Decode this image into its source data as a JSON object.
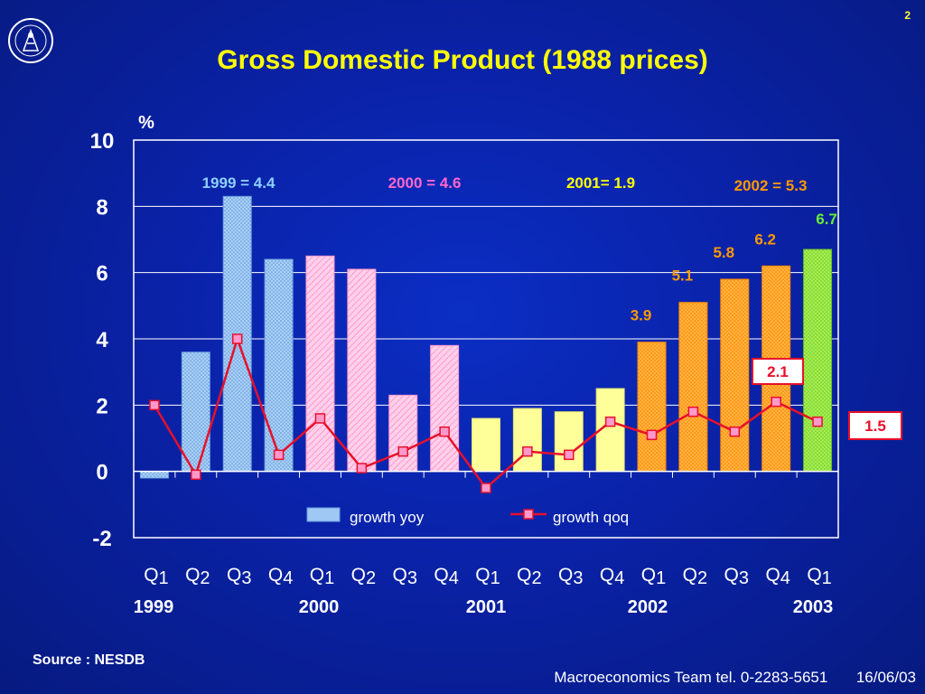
{
  "slide_number": "2",
  "title": "Gross Domestic Product (1988 prices)",
  "source": "Source : NESDB",
  "footer": {
    "team": "Macroeconomics Team tel. 0-2283-5651",
    "date": "16/06/03"
  },
  "colors": {
    "title": "#ffff00",
    "y1999": "#9fc8f5",
    "y2000": "#ffc2e4",
    "y2001": "#ffff99",
    "y2002": "#ff9a16",
    "y2003": "#88dd33",
    "qoq_line": "#e8102a",
    "qoq_marker": "#ff99cc"
  },
  "chart_data": {
    "type": "bar",
    "y_unit": "%",
    "ylim": [
      -2,
      10
    ],
    "y_ticks": [
      "-2",
      "0",
      "2",
      "4",
      "6",
      "8",
      "10"
    ],
    "categories": [
      "Q1",
      "Q2",
      "Q3",
      "Q4",
      "Q1",
      "Q2",
      "Q3",
      "Q4",
      "Q1",
      "Q2",
      "Q3",
      "Q4",
      "Q1",
      "Q2",
      "Q3",
      "Q4",
      "Q1"
    ],
    "year_labels": [
      {
        "label": "1999",
        "index": 0
      },
      {
        "label": "2000",
        "index": 4
      },
      {
        "label": "2001",
        "index": 8
      },
      {
        "label": "2002",
        "index": 12
      },
      {
        "label": "2003",
        "index": 16
      }
    ],
    "series": [
      {
        "name": "growth yoy",
        "type": "bar",
        "values": [
          -0.2,
          3.6,
          8.3,
          6.4,
          6.5,
          6.1,
          2.3,
          3.8,
          1.6,
          1.9,
          1.8,
          2.5,
          3.9,
          5.1,
          5.8,
          6.2,
          6.7
        ]
      },
      {
        "name": "growth qoq",
        "type": "line",
        "values": [
          2.0,
          -0.1,
          4.0,
          0.5,
          1.6,
          0.1,
          0.6,
          1.2,
          -0.5,
          0.6,
          0.5,
          1.5,
          1.1,
          1.8,
          1.2,
          2.1,
          1.5
        ]
      }
    ],
    "bar_colors_by_year": [
      "y1999",
      "y1999",
      "y1999",
      "y1999",
      "y2000",
      "y2000",
      "y2000",
      "y2000",
      "y2001",
      "y2001",
      "y2001",
      "y2001",
      "y2002",
      "y2002",
      "y2002",
      "y2002",
      "y2003"
    ],
    "annual_labels": [
      {
        "text": "1999 = 4.4",
        "color": "#8fd0ff"
      },
      {
        "text": "2000 = 4.6",
        "color": "#ff66cc"
      },
      {
        "text": "2001= 1.9",
        "color": "#ffff00"
      },
      {
        "text": "2002 = 5.3",
        "color": "#ff9900"
      }
    ],
    "bar_value_labels": [
      {
        "index": 12,
        "text": "3.9",
        "color": "#ff9900"
      },
      {
        "index": 13,
        "text": "5.1",
        "color": "#ff9900"
      },
      {
        "index": 14,
        "text": "5.8",
        "color": "#ff9900"
      },
      {
        "index": 15,
        "text": "6.2",
        "color": "#ff9900"
      },
      {
        "index": 16,
        "text": "6.7",
        "color": "#66ee33"
      }
    ],
    "qoq_callouts": [
      {
        "index": 15,
        "text": "2.1"
      },
      {
        "index": 16,
        "text": "1.5"
      }
    ],
    "legend": [
      "growth yoy",
      "growth qoq"
    ]
  }
}
